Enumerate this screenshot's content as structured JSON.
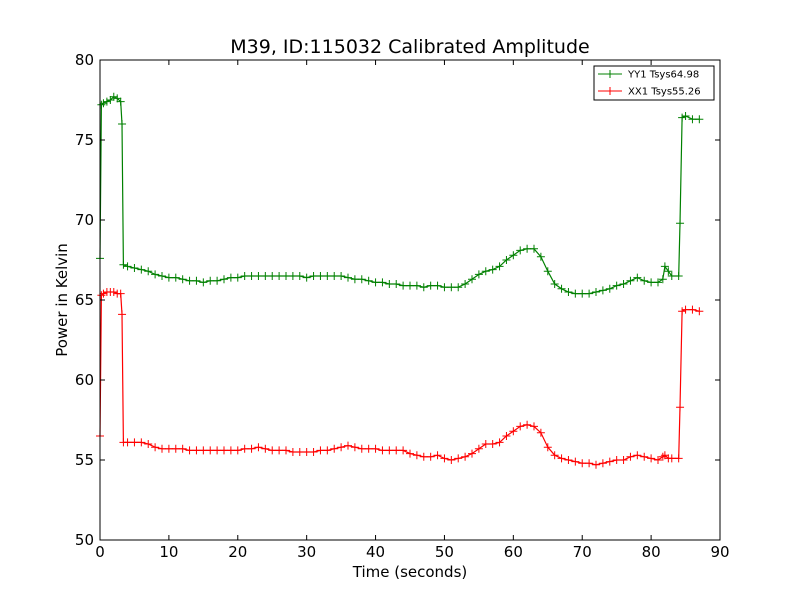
{
  "chart_data": {
    "type": "line",
    "title": "M39, ID:115032 Calibrated Amplitude",
    "xlabel": "Time (seconds)",
    "ylabel": "Power in Kelvin",
    "xlim": [
      0,
      90
    ],
    "ylim": [
      50,
      80
    ],
    "xticks": [
      "0",
      "10",
      "20",
      "30",
      "40",
      "50",
      "60",
      "70",
      "80",
      "90"
    ],
    "yticks": [
      "50",
      "55",
      "60",
      "65",
      "70",
      "75",
      "80"
    ],
    "grid": false,
    "legend_position": "top-right",
    "marker": "+",
    "series": [
      {
        "name": "YY1 Tsys64.98",
        "color": "#008000",
        "points": [
          [
            0.0,
            67.6
          ],
          [
            0.2,
            77.2
          ],
          [
            0.5,
            77.3
          ],
          [
            1.0,
            77.4
          ],
          [
            1.5,
            77.5
          ],
          [
            2.0,
            77.7
          ],
          [
            2.5,
            77.6
          ],
          [
            3.0,
            77.4
          ],
          [
            3.2,
            76.0
          ],
          [
            3.4,
            67.2
          ],
          [
            4,
            67.1
          ],
          [
            5,
            67.0
          ],
          [
            6,
            66.9
          ],
          [
            7,
            66.8
          ],
          [
            8,
            66.6
          ],
          [
            9,
            66.5
          ],
          [
            10,
            66.4
          ],
          [
            11,
            66.4
          ],
          [
            12,
            66.3
          ],
          [
            13,
            66.2
          ],
          [
            14,
            66.2
          ],
          [
            15,
            66.1
          ],
          [
            16,
            66.2
          ],
          [
            17,
            66.2
          ],
          [
            18,
            66.3
          ],
          [
            19,
            66.4
          ],
          [
            20,
            66.4
          ],
          [
            21,
            66.5
          ],
          [
            22,
            66.5
          ],
          [
            23,
            66.5
          ],
          [
            24,
            66.5
          ],
          [
            25,
            66.5
          ],
          [
            26,
            66.5
          ],
          [
            27,
            66.5
          ],
          [
            28,
            66.5
          ],
          [
            29,
            66.5
          ],
          [
            30,
            66.4
          ],
          [
            31,
            66.5
          ],
          [
            32,
            66.5
          ],
          [
            33,
            66.5
          ],
          [
            34,
            66.5
          ],
          [
            35,
            66.5
          ],
          [
            36,
            66.4
          ],
          [
            37,
            66.3
          ],
          [
            38,
            66.3
          ],
          [
            39,
            66.2
          ],
          [
            40,
            66.1
          ],
          [
            41,
            66.1
          ],
          [
            42,
            66.0
          ],
          [
            43,
            66.0
          ],
          [
            44,
            65.9
          ],
          [
            45,
            65.9
          ],
          [
            46,
            65.9
          ],
          [
            47,
            65.8
          ],
          [
            48,
            65.9
          ],
          [
            49,
            65.9
          ],
          [
            50,
            65.8
          ],
          [
            51,
            65.8
          ],
          [
            52,
            65.8
          ],
          [
            53,
            66.0
          ],
          [
            54,
            66.3
          ],
          [
            55,
            66.6
          ],
          [
            56,
            66.8
          ],
          [
            57,
            66.9
          ],
          [
            58,
            67.1
          ],
          [
            59,
            67.5
          ],
          [
            60,
            67.8
          ],
          [
            61,
            68.1
          ],
          [
            62,
            68.2
          ],
          [
            63,
            68.2
          ],
          [
            64,
            67.7
          ],
          [
            65,
            66.8
          ],
          [
            66,
            66.0
          ],
          [
            67,
            65.7
          ],
          [
            68,
            65.5
          ],
          [
            69,
            65.4
          ],
          [
            70,
            65.4
          ],
          [
            71,
            65.4
          ],
          [
            72,
            65.5
          ],
          [
            73,
            65.6
          ],
          [
            74,
            65.7
          ],
          [
            75,
            65.9
          ],
          [
            76,
            66.0
          ],
          [
            77,
            66.2
          ],
          [
            78,
            66.4
          ],
          [
            79,
            66.2
          ],
          [
            80,
            66.1
          ],
          [
            81,
            66.1
          ],
          [
            81.7,
            66.3
          ],
          [
            82.0,
            67.1
          ],
          [
            82.5,
            66.8
          ],
          [
            83,
            66.5
          ],
          [
            84,
            66.5
          ],
          [
            84.2,
            69.8
          ],
          [
            84.5,
            76.4
          ],
          [
            85,
            76.5
          ],
          [
            86,
            76.3
          ],
          [
            87,
            76.3
          ]
        ]
      },
      {
        "name": "XX1 Tsys55.26",
        "color": "#ff0000",
        "points": [
          [
            0.0,
            56.5
          ],
          [
            0.2,
            65.3
          ],
          [
            0.5,
            65.4
          ],
          [
            1.0,
            65.5
          ],
          [
            1.5,
            65.5
          ],
          [
            2.0,
            65.5
          ],
          [
            2.5,
            65.4
          ],
          [
            3.0,
            65.4
          ],
          [
            3.2,
            64.1
          ],
          [
            3.4,
            56.1
          ],
          [
            4,
            56.1
          ],
          [
            5,
            56.1
          ],
          [
            6,
            56.1
          ],
          [
            7,
            56.0
          ],
          [
            8,
            55.8
          ],
          [
            9,
            55.7
          ],
          [
            10,
            55.7
          ],
          [
            11,
            55.7
          ],
          [
            12,
            55.7
          ],
          [
            13,
            55.6
          ],
          [
            14,
            55.6
          ],
          [
            15,
            55.6
          ],
          [
            16,
            55.6
          ],
          [
            17,
            55.6
          ],
          [
            18,
            55.6
          ],
          [
            19,
            55.6
          ],
          [
            20,
            55.6
          ],
          [
            21,
            55.7
          ],
          [
            22,
            55.7
          ],
          [
            23,
            55.8
          ],
          [
            24,
            55.7
          ],
          [
            25,
            55.6
          ],
          [
            26,
            55.6
          ],
          [
            27,
            55.6
          ],
          [
            28,
            55.5
          ],
          [
            29,
            55.5
          ],
          [
            30,
            55.5
          ],
          [
            31,
            55.5
          ],
          [
            32,
            55.6
          ],
          [
            33,
            55.6
          ],
          [
            34,
            55.7
          ],
          [
            35,
            55.8
          ],
          [
            36,
            55.9
          ],
          [
            37,
            55.8
          ],
          [
            38,
            55.7
          ],
          [
            39,
            55.7
          ],
          [
            40,
            55.7
          ],
          [
            41,
            55.6
          ],
          [
            42,
            55.6
          ],
          [
            43,
            55.6
          ],
          [
            44,
            55.6
          ],
          [
            45,
            55.4
          ],
          [
            46,
            55.3
          ],
          [
            47,
            55.2
          ],
          [
            48,
            55.2
          ],
          [
            49,
            55.3
          ],
          [
            50,
            55.1
          ],
          [
            51,
            55.0
          ],
          [
            52,
            55.1
          ],
          [
            53,
            55.2
          ],
          [
            54,
            55.4
          ],
          [
            55,
            55.7
          ],
          [
            56,
            56.0
          ],
          [
            57,
            56.0
          ],
          [
            58,
            56.1
          ],
          [
            59,
            56.5
          ],
          [
            60,
            56.8
          ],
          [
            61,
            57.1
          ],
          [
            62,
            57.2
          ],
          [
            63,
            57.1
          ],
          [
            64,
            56.7
          ],
          [
            65,
            55.8
          ],
          [
            66,
            55.3
          ],
          [
            67,
            55.1
          ],
          [
            68,
            55.0
          ],
          [
            69,
            54.9
          ],
          [
            70,
            54.8
          ],
          [
            71,
            54.8
          ],
          [
            72,
            54.7
          ],
          [
            73,
            54.8
          ],
          [
            74,
            54.9
          ],
          [
            75,
            55.0
          ],
          [
            76,
            55.0
          ],
          [
            77,
            55.2
          ],
          [
            78,
            55.3
          ],
          [
            79,
            55.2
          ],
          [
            80,
            55.1
          ],
          [
            81,
            55.0
          ],
          [
            81.7,
            55.2
          ],
          [
            82.0,
            55.3
          ],
          [
            82.5,
            55.1
          ],
          [
            83,
            55.1
          ],
          [
            84,
            55.1
          ],
          [
            84.2,
            58.3
          ],
          [
            84.5,
            64.3
          ],
          [
            85,
            64.4
          ],
          [
            86,
            64.4
          ],
          [
            87,
            64.3
          ]
        ]
      }
    ]
  }
}
